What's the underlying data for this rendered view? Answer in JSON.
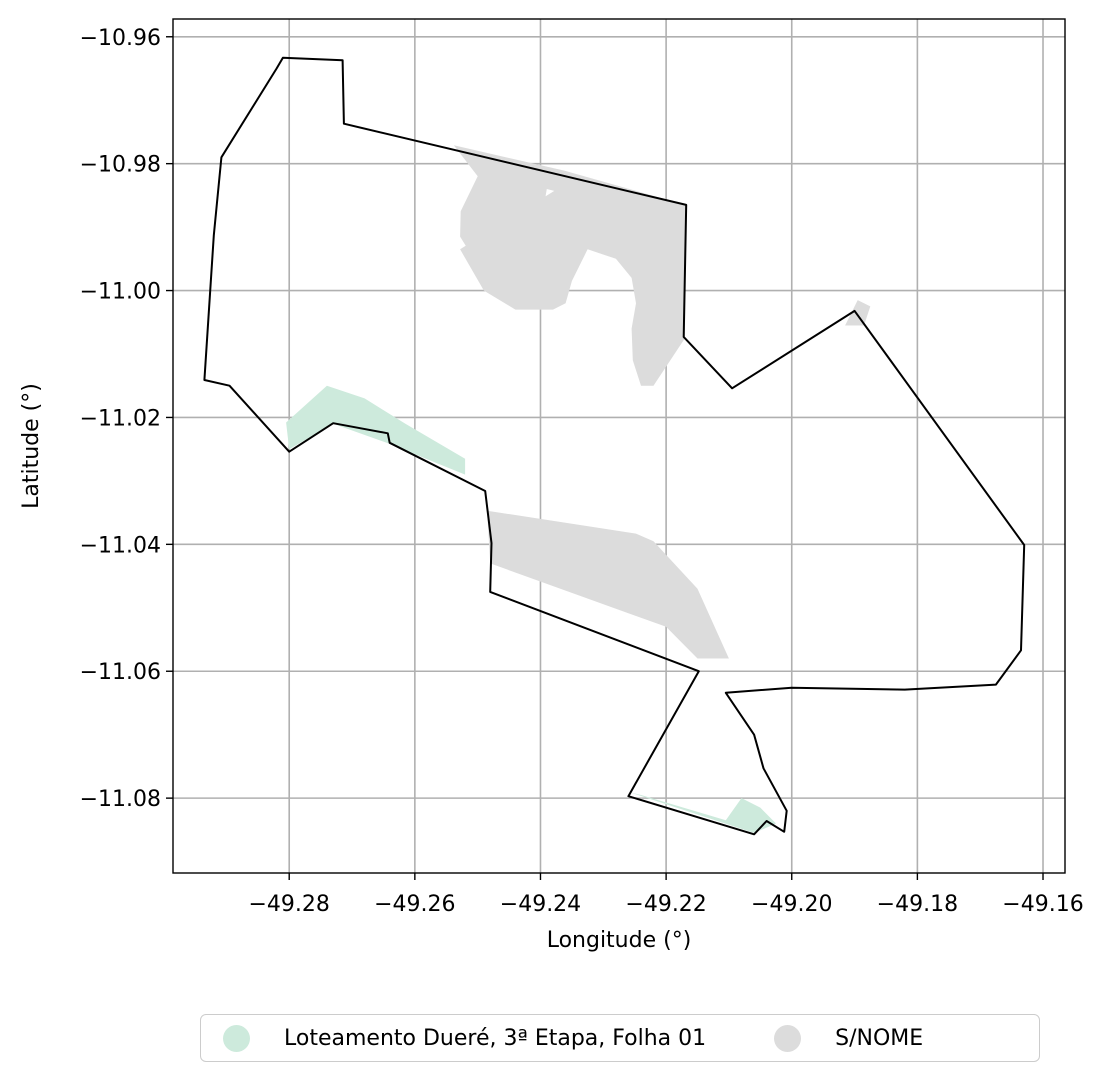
{
  "chart_data": {
    "type": "map",
    "xlabel": "Longitude (°)",
    "ylabel": "Latitude (°)",
    "xlim": [
      -49.2985,
      -49.1565
    ],
    "ylim": [
      -11.0918,
      -10.9572
    ],
    "grid": true,
    "legend_placement": "bottom-center",
    "xticks": [
      -49.28,
      -49.26,
      -49.24,
      -49.22,
      -49.2,
      -49.18,
      -49.16
    ],
    "xtick_labels": [
      "−49.28",
      "−49.26",
      "−49.24",
      "−49.22",
      "−49.20",
      "−49.18",
      "−49.16"
    ],
    "yticks": [
      -10.96,
      -10.98,
      -11.0,
      -11.02,
      -11.04,
      -11.06,
      -11.08
    ],
    "ytick_labels": [
      "−10.96",
      "−10.98",
      "−11.00",
      "−11.02",
      "−11.04",
      "−11.06",
      "−11.08"
    ],
    "legend": [
      {
        "label": "Loteamento Dueré, 3ª Etapa, Folha 01",
        "color": "#cdeadc"
      },
      {
        "label": "S/NOME",
        "color": "#dcdcdc"
      }
    ],
    "fill_areas": [
      {
        "series": "S/NOME",
        "color": "#dcdcdc",
        "polygons": [
          [
            [
              -49.2538,
              -10.9771
            ],
            [
              -49.2362,
              -10.9811
            ],
            [
              -49.2169,
              -10.9865
            ],
            [
              -49.217,
              -11.0075
            ],
            [
              -49.222,
              -11.015
            ],
            [
              -49.224,
              -11.015
            ],
            [
              -49.2253,
              -11.011
            ],
            [
              -49.2255,
              -11.006
            ],
            [
              -49.2248,
              -11.002
            ],
            [
              -49.2255,
              -10.998
            ],
            [
              -49.228,
              -10.995
            ],
            [
              -49.2325,
              -10.9935
            ],
            [
              -49.235,
              -10.9985
            ],
            [
              -49.236,
              -11.002
            ],
            [
              -49.238,
              -11.003
            ],
            [
              -49.244,
              -11.003
            ],
            [
              -49.249,
              -11.0
            ],
            [
              -49.2528,
              -10.9935
            ],
            [
              -49.2378,
              -10.9843
            ],
            [
              -49.239,
              -10.984
            ],
            [
              -49.2415,
              -10.9985
            ],
            [
              -49.245,
              -10.9995
            ],
            [
              -49.25,
              -10.996
            ],
            [
              -49.2528,
              -10.9915
            ],
            [
              -49.2527,
              -10.9875
            ],
            [
              -49.25,
              -10.982
            ]
          ],
          [
            [
              -49.1915,
              -11.0055
            ],
            [
              -49.1885,
              -11.0055
            ],
            [
              -49.1875,
              -11.0025
            ],
            [
              -49.1895,
              -11.0015
            ]
          ],
          [
            [
              -49.2485,
              -11.0347
            ],
            [
              -49.2248,
              -11.0383
            ],
            [
              -49.222,
              -11.0395
            ],
            [
              -49.215,
              -11.047
            ],
            [
              -49.21,
              -11.058
            ],
            [
              -49.215,
              -11.058
            ],
            [
              -49.22,
              -11.053
            ],
            [
              -49.248,
              -11.043
            ]
          ]
        ]
      },
      {
        "series": "Loteamento Dueré, 3ª Etapa, Folha 01",
        "color": "#cdeadc",
        "polygons": [
          [
            [
              -49.2805,
              -11.0208
            ],
            [
              -49.274,
              -11.015
            ],
            [
              -49.268,
              -11.017
            ],
            [
              -49.2615,
              -11.021
            ],
            [
              -49.252,
              -11.0265
            ],
            [
              -49.252,
              -11.029
            ],
            [
              -49.2645,
              -11.024
            ],
            [
              -49.273,
              -11.021
            ],
            [
              -49.28,
              -11.025
            ]
          ],
          [
            [
              -49.226,
              -11.079
            ],
            [
              -49.206,
              -11.0855
            ],
            [
              -49.2025,
              -11.084
            ],
            [
              -49.205,
              -11.0815
            ],
            [
              -49.208,
              -11.08
            ],
            [
              -49.2105,
              -11.0835
            ],
            [
              -49.224,
              -11.0795
            ]
          ]
        ]
      }
    ],
    "outline": [
      [
        -49.281,
        -10.9633
      ],
      [
        -49.2715,
        -10.9637
      ],
      [
        -49.2713,
        -10.9737
      ],
      [
        -49.2168,
        -10.9865
      ],
      [
        -49.2172,
        -11.0073
      ],
      [
        -49.2095,
        -11.0154
      ],
      [
        -49.19,
        -11.0032
      ],
      [
        -49.163,
        -11.0401
      ],
      [
        -49.1635,
        -11.0567
      ],
      [
        -49.1675,
        -11.0621
      ],
      [
        -49.182,
        -11.0629
      ],
      [
        -49.2,
        -11.0626
      ],
      [
        -49.2105,
        -11.0634
      ],
      [
        -49.206,
        -11.07
      ],
      [
        -49.2045,
        -11.0753
      ],
      [
        -49.2008,
        -11.082
      ],
      [
        -49.2012,
        -11.0853
      ],
      [
        -49.204,
        -11.0836
      ],
      [
        -49.206,
        -11.0857
      ],
      [
        -49.226,
        -11.0797
      ],
      [
        -49.2148,
        -11.06
      ],
      [
        -49.248,
        -11.0475
      ],
      [
        -49.2478,
        -11.0398
      ],
      [
        -49.2488,
        -11.0316
      ],
      [
        -49.264,
        -11.024
      ],
      [
        -49.2643,
        -11.0225
      ],
      [
        -49.273,
        -11.0209
      ],
      [
        -49.28,
        -11.0254
      ],
      [
        -49.2895,
        -11.015
      ],
      [
        -49.2935,
        -11.0141
      ],
      [
        -49.292,
        -10.9913
      ],
      [
        -49.2908,
        -10.979
      ],
      [
        -49.282,
        -10.965
      ]
    ]
  }
}
